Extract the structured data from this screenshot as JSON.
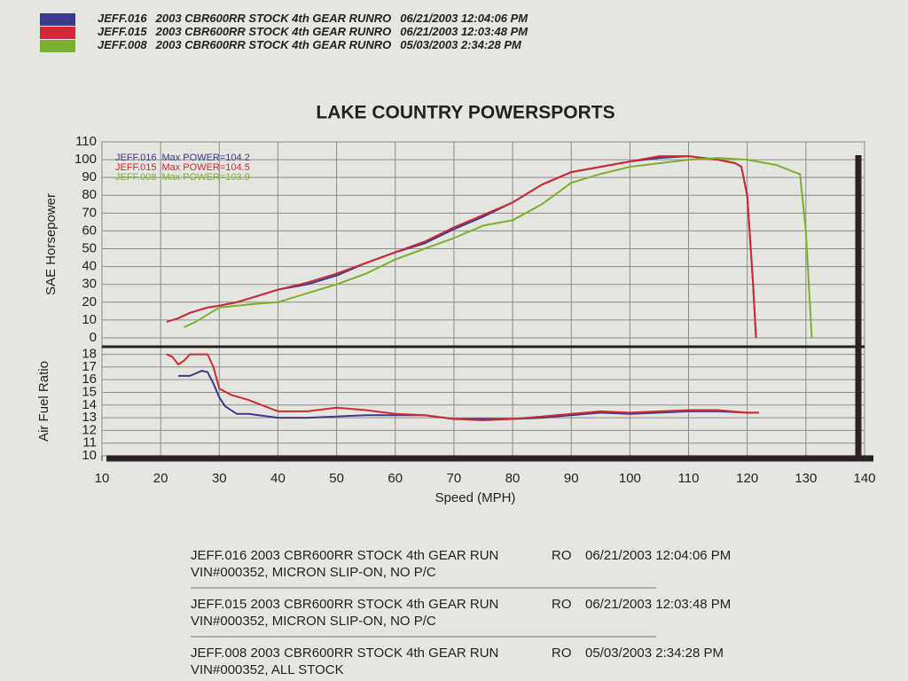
{
  "chart_data": [
    {
      "type": "line",
      "title": "LAKE COUNTRY POWERSPORTS",
      "ylabel": "SAE Horsepower",
      "xlim": [
        10,
        140
      ],
      "ylim": [
        -5,
        110
      ],
      "yticks": [
        0,
        10,
        20,
        30,
        40,
        50,
        60,
        70,
        80,
        90,
        100,
        110
      ],
      "grid": true,
      "series": [
        {
          "name": "JEFF.016",
          "color": "#3b3a8c",
          "annotation": "Max POWER=104.2",
          "description": "2003 CBR600RR STOCK 4th GEAR RUNRO",
          "date": "06/21/2003 12:04:06 PM",
          "x": [
            23,
            25,
            28,
            30,
            33,
            36,
            40,
            45,
            50,
            55,
            60,
            65,
            70,
            75,
            80,
            85,
            90,
            95,
            100,
            105,
            110,
            115,
            118,
            119,
            120,
            121,
            121.5
          ],
          "values": [
            11,
            14,
            17,
            18,
            20,
            23,
            27,
            30,
            35,
            42,
            48,
            53,
            61,
            68,
            76,
            86,
            93,
            96,
            99,
            101,
            102,
            100,
            98,
            96,
            80,
            30,
            0
          ]
        },
        {
          "name": "JEFF.015",
          "color": "#d02a35",
          "annotation": "Max POWER=104.5",
          "description": "2003 CBR600RR STOCK 4th GEAR RUNRO",
          "date": "06/21/2003 12:03:48 PM",
          "x": [
            21,
            23,
            25,
            28,
            30,
            33,
            36,
            40,
            45,
            50,
            55,
            60,
            65,
            70,
            75,
            80,
            85,
            90,
            95,
            100,
            105,
            110,
            115,
            118,
            119,
            120,
            121,
            121.5
          ],
          "values": [
            9,
            11,
            14,
            17,
            18,
            20,
            23,
            27,
            31,
            36,
            42,
            48,
            54,
            62,
            69,
            76,
            86,
            93,
            96,
            99,
            102,
            102,
            100,
            98,
            96,
            80,
            30,
            0
          ]
        },
        {
          "name": "JEFF.008",
          "color": "#7ab02c",
          "annotation": "Max POWER=103.9",
          "description": "2003 CBR600RR STOCK 4th GEAR RUNRO",
          "date": "05/03/2003 2:34:28 PM",
          "x": [
            24,
            26,
            28,
            30,
            33,
            36,
            40,
            45,
            50,
            55,
            60,
            65,
            70,
            75,
            80,
            85,
            90,
            95,
            100,
            105,
            110,
            115,
            120,
            125,
            128,
            129,
            130,
            131
          ],
          "values": [
            6,
            9,
            13,
            17,
            18,
            19,
            20,
            25,
            30,
            36,
            44,
            50,
            56,
            63,
            66,
            75,
            87,
            92,
            96,
            98,
            100,
            101,
            100,
            97,
            93,
            92,
            60,
            0
          ]
        }
      ]
    },
    {
      "type": "line",
      "ylabel": "Air Fuel Ratio",
      "xlabel": "Speed (MPH)",
      "xlim": [
        10,
        140
      ],
      "xticks": [
        10,
        20,
        30,
        40,
        50,
        60,
        70,
        80,
        90,
        100,
        110,
        120,
        130,
        140
      ],
      "ylim": [
        10,
        18.6
      ],
      "yticks": [
        10,
        11,
        12,
        13,
        14,
        15,
        16,
        17,
        18
      ],
      "grid": true,
      "series": [
        {
          "name": "JEFF.016",
          "color": "#3b3a8c",
          "x": [
            23,
            25,
            27,
            28,
            29,
            30,
            31,
            33,
            35,
            40,
            45,
            50,
            55,
            60,
            65,
            70,
            75,
            80,
            85,
            90,
            95,
            100,
            105,
            110,
            115,
            120,
            122
          ],
          "values": [
            16.3,
            16.3,
            16.7,
            16.6,
            15.7,
            14.6,
            13.9,
            13.3,
            13.3,
            13.0,
            13.0,
            13.1,
            13.2,
            13.2,
            13.2,
            12.9,
            12.9,
            12.9,
            13.0,
            13.2,
            13.4,
            13.3,
            13.4,
            13.5,
            13.5,
            13.4,
            13.4
          ]
        },
        {
          "name": "JEFF.015",
          "color": "#d02a35",
          "x": [
            21,
            22,
            23,
            24,
            25,
            27,
            28,
            29,
            30,
            32,
            35,
            40,
            45,
            50,
            55,
            60,
            65,
            70,
            75,
            80,
            85,
            90,
            95,
            100,
            105,
            110,
            115,
            120,
            122
          ],
          "values": [
            18,
            17.8,
            17.2,
            17.5,
            18,
            18,
            18,
            17,
            15.3,
            14.8,
            14.4,
            13.5,
            13.5,
            13.8,
            13.6,
            13.3,
            13.2,
            12.9,
            12.8,
            12.9,
            13.1,
            13.3,
            13.5,
            13.4,
            13.5,
            13.6,
            13.6,
            13.4,
            13.4
          ]
        }
      ]
    }
  ],
  "footer": {
    "runs": [
      {
        "title": "JEFF.016  2003 CBR600RR STOCK 4th GEAR RUN",
        "ro": "RO",
        "date": "06/21/2003 12:04:06 PM",
        "detail": "VIN#000352, MICRON SLIP-ON, NO P/C"
      },
      {
        "title": "JEFF.015  2003 CBR600RR STOCK 4th GEAR RUN",
        "ro": "RO",
        "date": "06/21/2003 12:03:48 PM",
        "detail": "VIN#000352, MICRON SLIP-ON, NO P/C"
      },
      {
        "title": "JEFF.008  2003 CBR600RR STOCK 4th GEAR RUN",
        "ro": "RO",
        "date": "05/03/2003 2:34:28 PM",
        "detail": "VIN#000352, ALL STOCK"
      }
    ]
  }
}
